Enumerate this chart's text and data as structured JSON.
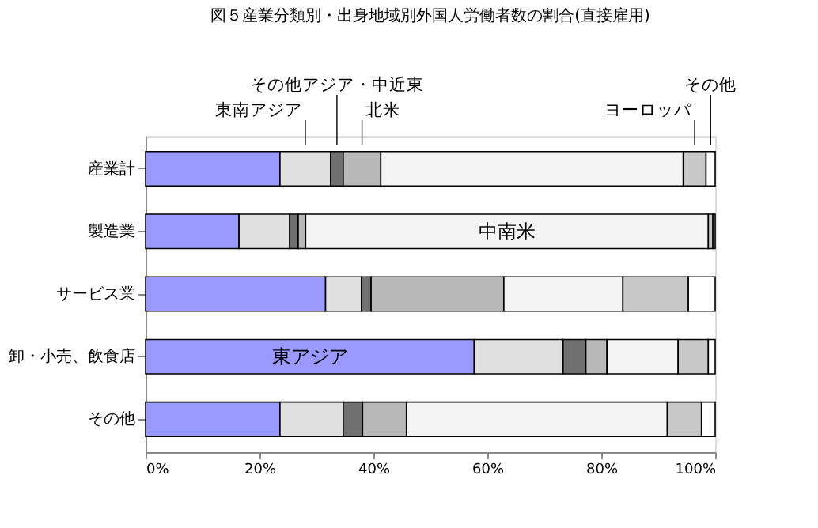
{
  "chart_data": {
    "type": "bar",
    "orientation": "horizontal",
    "stacked": true,
    "title": "図５産業分類別・出身地域別外国人労働者数の割合(直接雇用)",
    "categories": [
      "産業計",
      "製造業",
      "サービス業",
      "卸・小売、飲食店",
      "その他"
    ],
    "series": [
      {
        "name": "東アジア",
        "color": "#9999ff",
        "values": [
          23.6,
          16.4,
          31.6,
          57.7,
          23.6
        ]
      },
      {
        "name": "東南アジア",
        "color": "#e0e0e0",
        "values": [
          8.9,
          8.9,
          6.3,
          15.6,
          11.1
        ]
      },
      {
        "name": "その他アジア・中近東",
        "color": "#707070",
        "values": [
          2.2,
          1.5,
          1.7,
          4.0,
          3.4
        ]
      },
      {
        "name": "北米",
        "color": "#b8b8b8",
        "values": [
          6.6,
          1.3,
          23.3,
          3.7,
          7.7
        ]
      },
      {
        "name": "中南米",
        "color": "#f4f4f4",
        "values": [
          53.1,
          70.7,
          20.9,
          12.5,
          45.8
        ]
      },
      {
        "name": "ヨーロッパ",
        "color": "#c8c8c8",
        "values": [
          4.0,
          0.8,
          11.5,
          5.3,
          6.0
        ]
      },
      {
        "name": "その他",
        "color": "#ffffff",
        "values": [
          1.6,
          0.4,
          4.7,
          1.2,
          2.4
        ]
      }
    ],
    "xlim": [
      0,
      100
    ],
    "xticks": [
      {
        "value": 0,
        "label": "0%"
      },
      {
        "value": 20,
        "label": "20%"
      },
      {
        "value": 40,
        "label": "40%"
      },
      {
        "value": 60,
        "label": "60%"
      },
      {
        "value": 80,
        "label": "80%"
      },
      {
        "value": 100,
        "label": "100%"
      }
    ],
    "grid": false,
    "legend": false
  }
}
